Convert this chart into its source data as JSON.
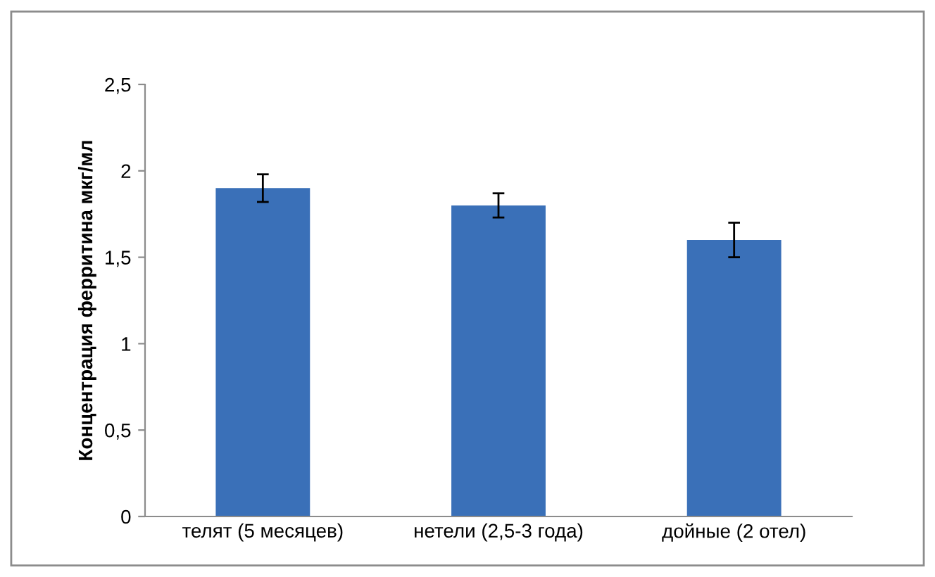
{
  "chart_data": {
    "type": "bar",
    "ylabel": "Концентрация ферритина мкг/мл",
    "categories": [
      "телят (5 месяцев)",
      "нетели (2,5-3 года)",
      "дойные (2 отел)"
    ],
    "values": [
      1.9,
      1.8,
      1.6
    ],
    "errors": [
      0.08,
      0.07,
      0.1
    ],
    "color": "#3a70b8",
    "ylim": [
      0,
      2.5
    ],
    "yticks": [
      {
        "value": 0,
        "label": "0"
      },
      {
        "value": 0.5,
        "label": "0,5"
      },
      {
        "value": 1,
        "label": "1"
      },
      {
        "value": 1.5,
        "label": "1,5"
      },
      {
        "value": 2,
        "label": "2"
      },
      {
        "value": 2.5,
        "label": "2,5"
      }
    ],
    "grid": false,
    "legend": false
  }
}
